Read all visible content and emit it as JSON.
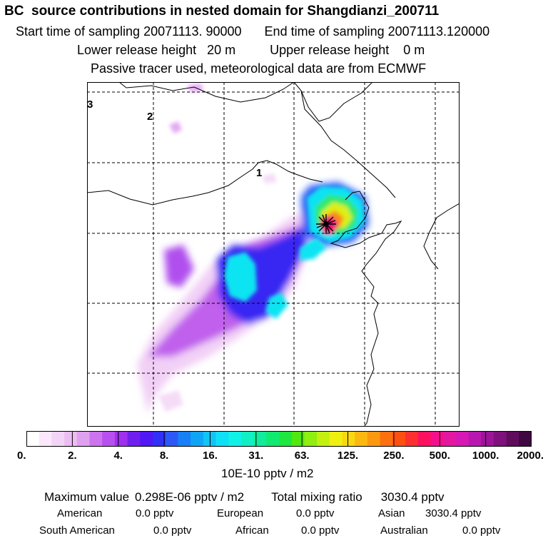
{
  "header": {
    "title": "BC  source contributions in nested domain for Shangdianzi_200711",
    "start_label": "Start time of sampling 20071113. 90000",
    "end_label": "End time of sampling 20071113.120000",
    "lower_label": "Lower release height   20 m",
    "upper_label": "Upper release height    0 m",
    "tracer_note": "Passive tracer used, meteorological data are from ECMWF"
  },
  "map": {
    "domain_labels": [
      "3",
      "2",
      "1"
    ],
    "receptor_marker": "star-icon"
  },
  "chart_data": {
    "type": "heatmap",
    "title": "BC  source contributions in nested domain for Shangdianzi_200711",
    "colorbar": {
      "tick_labels": [
        "0.",
        "2.",
        "4.",
        "8.",
        "16.",
        "31.",
        "63.",
        "125.",
        "250.",
        "500.",
        "1000.",
        "2000."
      ],
      "units": "10E-10 pptv / m2",
      "colors": [
        "#ffffff",
        "#fbe8fb",
        "#f4d4f6",
        "#ecbdf2",
        "#e0a0f0",
        "#cc73ee",
        "#b850ef",
        "#a030ef",
        "#6f20ef",
        "#5018f5",
        "#3030f7",
        "#2c58f7",
        "#1880f7",
        "#10a4f7",
        "#10c4f5",
        "#10e0f5",
        "#10f2e8",
        "#10f0c4",
        "#10ec9c",
        "#10ea70",
        "#20e640",
        "#50e810",
        "#90ee10",
        "#c4f010",
        "#f0f010",
        "#f8d810",
        "#fcb810",
        "#fc9810",
        "#fc7010",
        "#fc5010",
        "#fc3030",
        "#fc1060",
        "#f4108c",
        "#e418a0",
        "#d818b4",
        "#b818b0",
        "#9c1498",
        "#80107c",
        "#600c5c",
        "#400840"
      ]
    },
    "summary": {
      "max_label": "Maximum value",
      "max_value": "0.298E-06 pptv / m2",
      "total_label": "Total mixing ratio",
      "total_value": "3030.4 pptv"
    },
    "regions": [
      {
        "name": "American",
        "value": "0.0 pptv"
      },
      {
        "name": "European",
        "value": "0.0 pptv"
      },
      {
        "name": "Asian",
        "value": "3030.4 pptv"
      },
      {
        "name": "South American",
        "value": "0.0 pptv"
      },
      {
        "name": "African",
        "value": "0.0 pptv"
      },
      {
        "name": "Australian",
        "value": "0.0 pptv"
      }
    ]
  }
}
